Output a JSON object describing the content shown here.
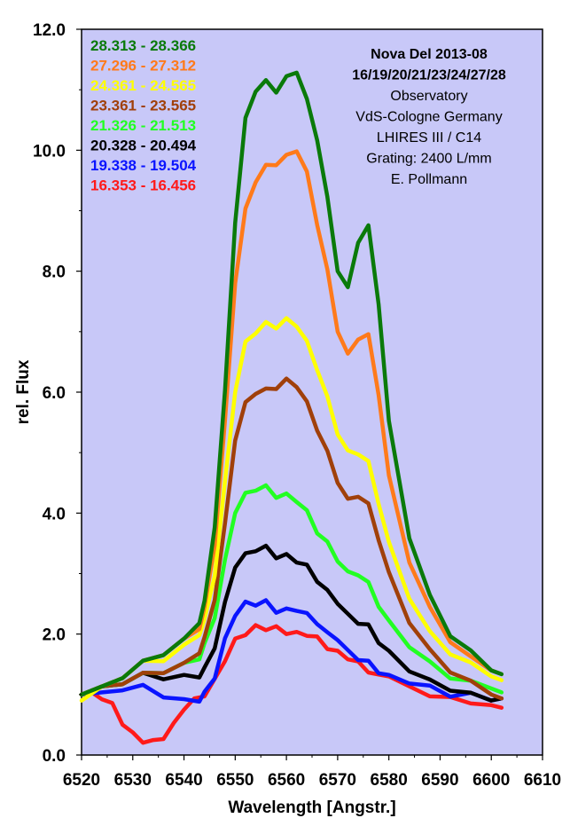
{
  "chart_data": {
    "type": "line",
    "xlabel": "Wavelength [Angstr.]",
    "ylabel": "rel. Flux",
    "xlim": [
      6520,
      6610
    ],
    "ylim": [
      0,
      12
    ],
    "x_ticks": [
      6520,
      6530,
      6540,
      6550,
      6560,
      6570,
      6580,
      6590,
      6600,
      6610
    ],
    "y_ticks": [
      "0.0",
      "2.0",
      "4.0",
      "6.0",
      "8.0",
      "10.0",
      "12.0"
    ],
    "y_tick_values": [
      0,
      2,
      4,
      6,
      8,
      10,
      12
    ],
    "background_color": "#c8c8f8",
    "grid": false,
    "legend_position": "top-left",
    "annotation": [
      "Nova Del 2013-08",
      "16/19/20/21/23/24/27/28",
      "Observatory",
      "VdS-Cologne Germany",
      "LHIRES III / C14",
      "Grating: 2400 L/mm",
      "E. Pollmann"
    ],
    "series": [
      {
        "name": "28.313 - 28.366",
        "color": "#0a7a0a",
        "x": [
          6520,
          6524,
          6528,
          6532,
          6536,
          6540,
          6543,
          6544,
          6546,
          6548,
          6550,
          6552,
          6554,
          6556,
          6558,
          6560,
          6562,
          6564,
          6566,
          6568,
          6570,
          6572,
          6574,
          6576,
          6578,
          6580,
          6584,
          6588,
          6592,
          6596,
          6600,
          6602
        ],
        "y": [
          1.0,
          1.1,
          1.3,
          1.5,
          1.7,
          1.9,
          2.2,
          2.5,
          3.8,
          6.0,
          8.8,
          10.5,
          11.0,
          11.1,
          11.0,
          11.2,
          11.3,
          10.8,
          10.2,
          9.2,
          8.0,
          7.7,
          8.5,
          8.7,
          7.5,
          5.5,
          3.6,
          2.6,
          2.0,
          1.7,
          1.4,
          1.3
        ]
      },
      {
        "name": "27.296 - 27.312",
        "color": "#ff7a1a",
        "x": [
          6520,
          6524,
          6528,
          6532,
          6536,
          6540,
          6543,
          6544,
          6546,
          6548,
          6550,
          6552,
          6554,
          6556,
          6558,
          6560,
          6562,
          6564,
          6566,
          6568,
          6570,
          6572,
          6574,
          6576,
          6578,
          6580,
          6584,
          6588,
          6592,
          6596,
          6600,
          6602
        ],
        "y": [
          1.0,
          1.1,
          1.3,
          1.5,
          1.7,
          1.9,
          2.1,
          2.4,
          3.5,
          5.5,
          7.8,
          9.0,
          9.5,
          9.7,
          9.8,
          9.9,
          10.0,
          9.6,
          8.8,
          8.0,
          7.0,
          6.6,
          6.9,
          6.9,
          6.0,
          4.6,
          3.2,
          2.4,
          1.9,
          1.6,
          1.4,
          1.3
        ]
      },
      {
        "name": "24.361 - 24.565",
        "color": "#ffff00",
        "x": [
          6520,
          6524,
          6528,
          6532,
          6536,
          6540,
          6543,
          6544,
          6546,
          6548,
          6550,
          6552,
          6554,
          6556,
          6558,
          6560,
          6562,
          6564,
          6566,
          6568,
          6570,
          6572,
          6574,
          6576,
          6578,
          6580,
          6584,
          6588,
          6592,
          6596,
          6600,
          6602
        ],
        "y": [
          0.9,
          1.1,
          1.3,
          1.5,
          1.6,
          1.8,
          2.0,
          2.2,
          3.0,
          4.5,
          6.0,
          6.8,
          7.0,
          7.1,
          7.1,
          7.2,
          7.1,
          6.8,
          6.4,
          5.9,
          5.3,
          5.0,
          5.0,
          4.8,
          4.2,
          3.5,
          2.6,
          2.0,
          1.7,
          1.5,
          1.3,
          1.2
        ]
      },
      {
        "name": "23.361 - 23.565",
        "color": "#a0400a",
        "x": [
          6520,
          6524,
          6528,
          6532,
          6536,
          6540,
          6543,
          6544,
          6546,
          6548,
          6550,
          6552,
          6554,
          6556,
          6558,
          6560,
          6562,
          6564,
          6566,
          6568,
          6570,
          6572,
          6574,
          6576,
          6578,
          6580,
          6584,
          6588,
          6592,
          6596,
          6600,
          6602
        ],
        "y": [
          1.0,
          1.1,
          1.2,
          1.3,
          1.4,
          1.5,
          1.7,
          1.9,
          2.6,
          3.8,
          5.2,
          5.8,
          6.0,
          6.0,
          6.1,
          6.2,
          6.1,
          5.8,
          5.4,
          5.0,
          4.5,
          4.2,
          4.3,
          4.1,
          3.6,
          3.0,
          2.2,
          1.7,
          1.4,
          1.2,
          1.0,
          0.9
        ]
      },
      {
        "name": "21.326 - 21.513",
        "color": "#22ff22",
        "x": [
          6520,
          6524,
          6528,
          6532,
          6536,
          6540,
          6543,
          6544,
          6546,
          6548,
          6550,
          6552,
          6554,
          6556,
          6558,
          6560,
          6562,
          6564,
          6566,
          6568,
          6570,
          6572,
          6574,
          6576,
          6578,
          6580,
          6584,
          6588,
          6592,
          6596,
          6600,
          6602
        ],
        "y": [
          1.0,
          1.1,
          1.2,
          1.3,
          1.4,
          1.5,
          1.6,
          1.8,
          2.3,
          3.2,
          4.0,
          4.3,
          4.4,
          4.4,
          4.3,
          4.3,
          4.2,
          4.0,
          3.7,
          3.5,
          3.2,
          3.0,
          3.0,
          2.8,
          2.5,
          2.2,
          1.8,
          1.5,
          1.3,
          1.2,
          1.1,
          1.0
        ]
      },
      {
        "name": "20.328 - 20.494",
        "color": "#000000",
        "x": [
          6520,
          6524,
          6528,
          6532,
          6536,
          6540,
          6543,
          6544,
          6546,
          6548,
          6550,
          6552,
          6554,
          6556,
          6558,
          6560,
          6562,
          6564,
          6566,
          6568,
          6570,
          6572,
          6574,
          6576,
          6578,
          6580,
          6584,
          6588,
          6592,
          6596,
          6600,
          6602
        ],
        "y": [
          1.0,
          1.1,
          1.2,
          1.3,
          1.3,
          1.3,
          1.3,
          1.4,
          1.8,
          2.5,
          3.1,
          3.3,
          3.4,
          3.4,
          3.3,
          3.3,
          3.2,
          3.1,
          2.9,
          2.7,
          2.5,
          2.3,
          2.2,
          2.1,
          1.9,
          1.7,
          1.4,
          1.2,
          1.1,
          1.0,
          0.9,
          0.9
        ]
      },
      {
        "name": "19.338 - 19.504",
        "color": "#0a14ff",
        "x": [
          6520,
          6524,
          6528,
          6532,
          6536,
          6540,
          6543,
          6544,
          6546,
          6548,
          6550,
          6552,
          6554,
          6556,
          6558,
          6560,
          6562,
          6564,
          6566,
          6568,
          6570,
          6572,
          6574,
          6576,
          6578,
          6580,
          6584,
          6588,
          6592,
          6596,
          6600,
          6602
        ],
        "y": [
          1.0,
          1.0,
          1.1,
          1.1,
          1.0,
          0.9,
          0.9,
          1.0,
          1.3,
          1.9,
          2.3,
          2.5,
          2.5,
          2.5,
          2.4,
          2.4,
          2.4,
          2.3,
          2.2,
          2.0,
          1.9,
          1.7,
          1.6,
          1.5,
          1.4,
          1.3,
          1.2,
          1.1,
          1.0,
          1.0,
          0.9,
          0.9
        ]
      },
      {
        "name": "16.353 - 16.456",
        "color": "#ff1a1a",
        "x": [
          6520,
          6522,
          6524,
          6526,
          6528,
          6530,
          6532,
          6534,
          6536,
          6538,
          6540,
          6542,
          6544,
          6546,
          6548,
          6550,
          6552,
          6554,
          6556,
          6558,
          6560,
          6562,
          6564,
          6566,
          6568,
          6570,
          6572,
          6574,
          6576,
          6578,
          6580,
          6584,
          6588,
          6592,
          6596,
          6600,
          6602
        ],
        "y": [
          1.0,
          1.0,
          0.95,
          0.8,
          0.55,
          0.35,
          0.22,
          0.2,
          0.3,
          0.5,
          0.75,
          0.9,
          1.0,
          1.2,
          1.6,
          1.9,
          2.0,
          2.1,
          2.1,
          2.1,
          2.0,
          2.0,
          2.0,
          1.9,
          1.8,
          1.7,
          1.6,
          1.5,
          1.4,
          1.3,
          1.3,
          1.1,
          1.0,
          0.9,
          0.9,
          0.8,
          0.8
        ]
      }
    ]
  }
}
